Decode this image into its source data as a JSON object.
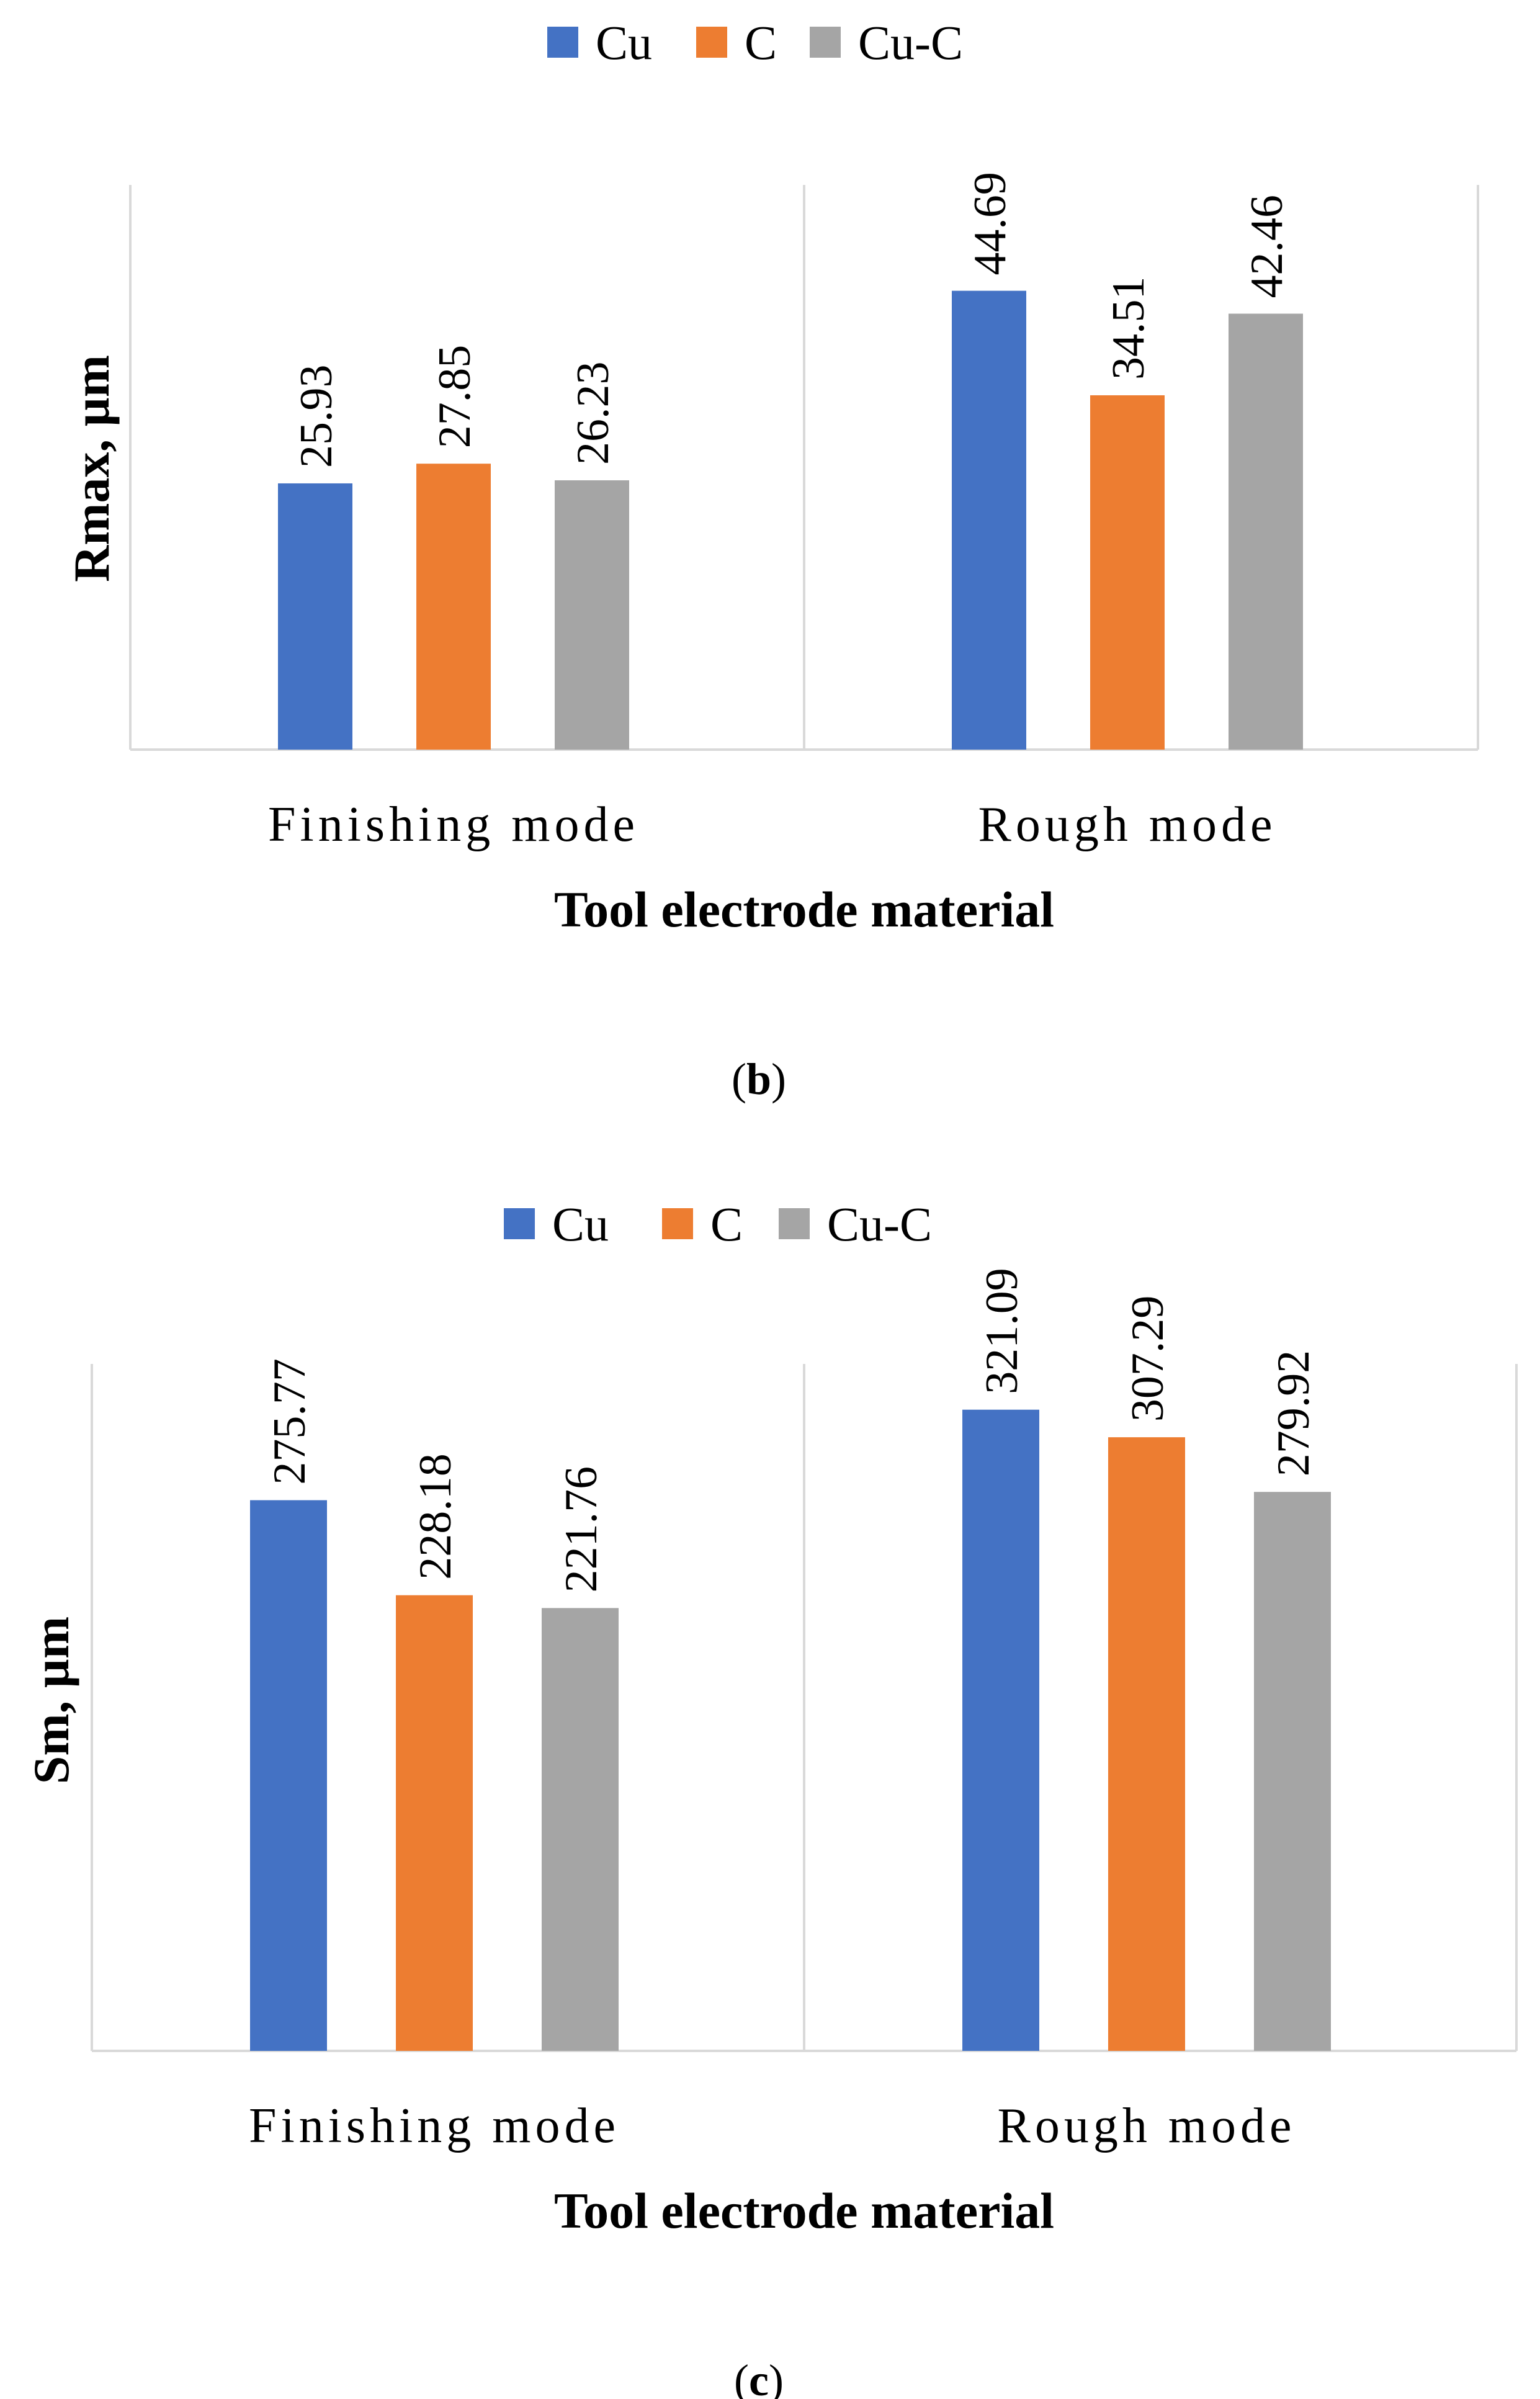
{
  "chart_data": [
    {
      "type": "bar",
      "title": "",
      "xlabel": "Tool electrode material",
      "ylabel": "Rmax, µm",
      "ylim": [
        0,
        55
      ],
      "categories": [
        "Finishing mode",
        "Rough mode"
      ],
      "series": [
        {
          "name": "Cu",
          "color": "#4472C4",
          "values": [
            25.93,
            44.69
          ],
          "labels": [
            "25.93",
            "44.69"
          ]
        },
        {
          "name": "C",
          "color": "#ED7D31",
          "values": [
            27.85,
            34.51
          ],
          "labels": [
            "27.85",
            "34.51"
          ]
        },
        {
          "name": "Cu-C",
          "color": "#A5A5A5",
          "values": [
            26.23,
            42.46
          ],
          "labels": [
            "26.23",
            "42.46"
          ]
        }
      ],
      "legend_position": "top",
      "grid": false,
      "caption_letter": "b"
    },
    {
      "type": "bar",
      "title": "",
      "xlabel": "Tool electrode material",
      "ylabel": "Sm, µm",
      "ylim": [
        0,
        344
      ],
      "categories": [
        "Finishing mode",
        "Rough mode"
      ],
      "series": [
        {
          "name": "Cu",
          "color": "#4472C4",
          "values": [
            275.77,
            321.09
          ],
          "labels": [
            "275.77",
            "321.09"
          ]
        },
        {
          "name": "C",
          "color": "#ED7D31",
          "values": [
            228.18,
            307.29
          ],
          "labels": [
            "228.18",
            "307.29"
          ]
        },
        {
          "name": "Cu-C",
          "color": "#A5A5A5",
          "values": [
            221.76,
            279.92
          ],
          "labels": [
            "221.76",
            "279.92"
          ]
        }
      ],
      "legend_position": "top",
      "grid": false,
      "caption_letter": "c"
    }
  ]
}
